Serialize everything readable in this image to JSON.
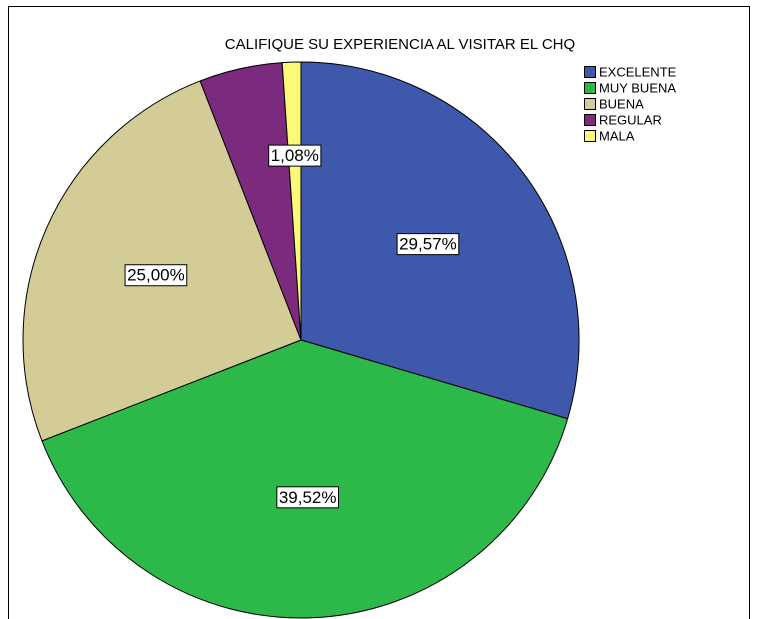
{
  "chart_data": {
    "type": "pie",
    "title": "CALIFIQUE SU EXPERIENCIA AL VISITAR EL CHQ",
    "categories": [
      "EXCELENTE",
      "MUY BUENA",
      "BUENA",
      "REGULAR",
      "MALA"
    ],
    "values": [
      29.57,
      39.52,
      25.0,
      4.83,
      1.08
    ],
    "value_labels": [
      "29,57%",
      "39,52%",
      "25,00%",
      null,
      "1,08%"
    ],
    "colors": [
      "#3e58ac",
      "#2db84a",
      "#d4cc96",
      "#7b2a7e",
      "#fbf87a"
    ],
    "legend": "top-right"
  }
}
